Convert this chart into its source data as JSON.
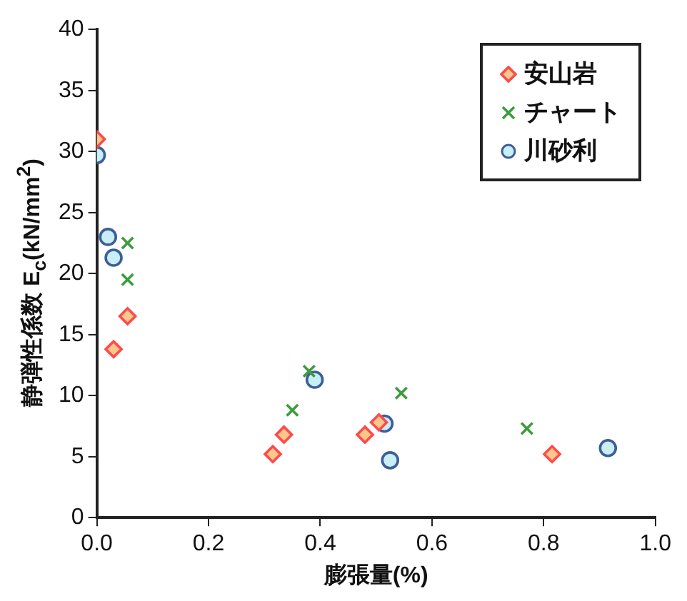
{
  "chart_data": {
    "type": "scatter",
    "xlabel": "膨張量(%)",
    "ylabel": "静弾性係数 E$_{c}$(kN/mm$^{2}$)",
    "xlim": [
      0,
      1
    ],
    "xticks": [
      {
        "value": 0,
        "label": "0.0"
      },
      {
        "value": 0.2,
        "label": "0.2"
      },
      {
        "value": 0.4,
        "label": "0.4"
      },
      {
        "value": 0.6,
        "label": "0.6"
      },
      {
        "value": 0.8,
        "label": "0.8"
      },
      {
        "value": 1,
        "label": "1.0"
      }
    ],
    "ylim": [
      0,
      40
    ],
    "yticks": [
      0,
      5,
      10,
      15,
      20,
      25,
      30,
      35,
      40
    ],
    "grid": false,
    "legend": "top right",
    "series": [
      {
        "name": "安山岩",
        "color": "#ff4a4a",
        "marker": "diamond",
        "x": [
          0.0,
          0.03,
          0.055,
          0.315,
          0.335,
          0.48,
          0.505,
          0.815
        ],
        "values": [
          31,
          13.8,
          16.5,
          5.2,
          6.8,
          6.8,
          7.8,
          5.2
        ]
      },
      {
        "name": "チャート",
        "color": "#3c9c3c",
        "marker": "cross",
        "x": [
          0.055,
          0.055,
          0.35,
          0.38,
          0.545,
          0.77
        ],
        "values": [
          22.5,
          19.5,
          8.8,
          12,
          10.2,
          7.3
        ]
      },
      {
        "name": "川砂利",
        "color": "#3d5f98",
        "marker": "circle",
        "x": [
          0.0,
          0.02,
          0.03,
          0.39,
          0.515,
          0.525,
          0.915
        ],
        "values": [
          29.7,
          23,
          21.3,
          11.3,
          7.7,
          4.7,
          5.7
        ]
      }
    ]
  }
}
